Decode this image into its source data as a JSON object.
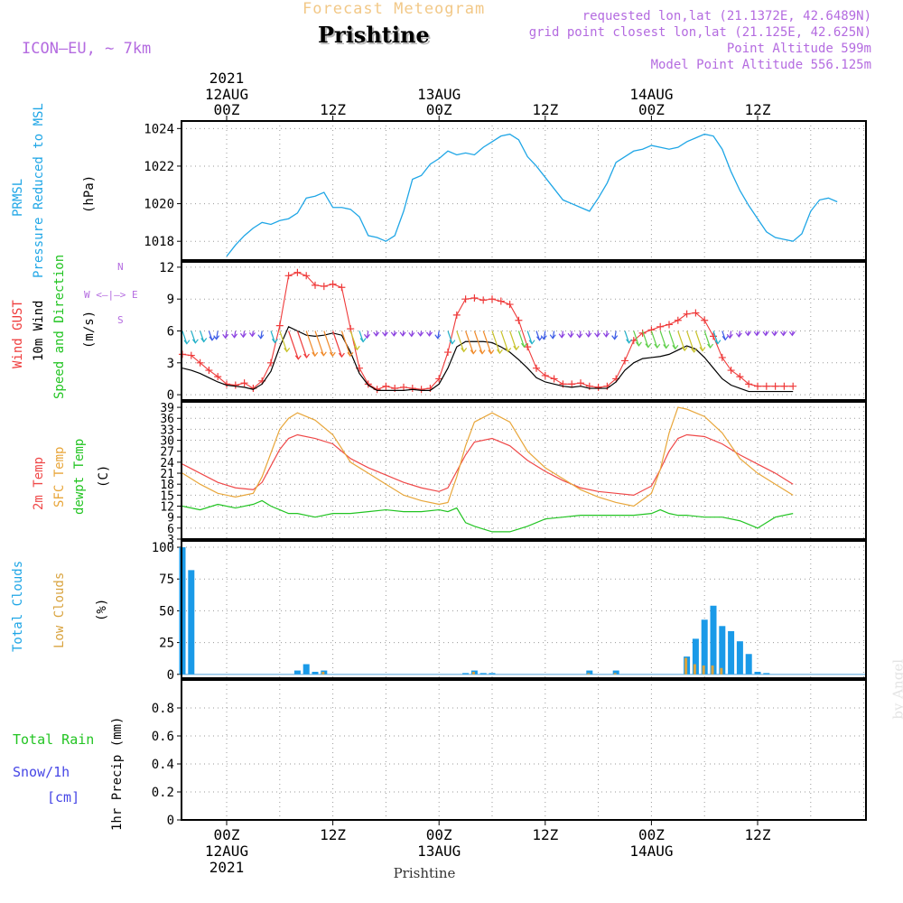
{
  "header": {
    "title": "Forecast Meteogram",
    "location": "Prishtine",
    "model": "ICON—EU,  ∼ 7km",
    "requested": "requested lon,lat (21.1372E, 42.6489N)",
    "grid_point": "grid point closest lon,lat (21.125E, 42.625N)",
    "point_altitude": "Point Altitude 599m",
    "model_altitude": "Model Point Altitude 556.125m"
  },
  "time_axis": {
    "top_year": "2021",
    "days": [
      "12AUG",
      "13AUG",
      "14AUG"
    ],
    "tick_00": "00Z",
    "tick_12": "12Z",
    "bottom_year": "2021",
    "footer": "Prishtine"
  },
  "panel_labels": {
    "pressure": [
      "PRMSL",
      "Pressure Reduced to MSL",
      "(hPa)"
    ],
    "wind": [
      "Wind GUST",
      "10m Wind",
      "Speed and Direction",
      "(m/s)"
    ],
    "compass": [
      "N",
      "W <—|—> E",
      "S"
    ],
    "temp": [
      "2m Temp",
      "SFC Temp",
      "dewpt Temp",
      "(C)"
    ],
    "clouds": [
      "Total Clouds",
      "Low Clouds",
      "(%)"
    ],
    "precip_axis": "1hr Precip (mm)",
    "precip_legend": [
      "Total  Rain",
      "Snow/1h",
      "[cm]"
    ]
  },
  "credit": "by Angel",
  "colors": {
    "pressure": "#1fa6e6",
    "gust": "#ef3b3b",
    "wind": "#000000",
    "temp2m": "#ef4848",
    "sfc": "#e8a63a",
    "dewpt": "#22c422",
    "total_clouds": "#1a9ae8",
    "low_clouds": "#d9a440",
    "rain": "#22c422",
    "snow": "#4646e6",
    "purple": "#b46be0"
  },
  "chart_data": [
    {
      "type": "line",
      "name": "pressure",
      "ylabel": "(hPa)",
      "ylim": [
        1017,
        1024.4
      ],
      "yticks": [
        1018,
        1020,
        1022,
        1024
      ],
      "x_hours": [
        0,
        1,
        2,
        3,
        4,
        5,
        6,
        7,
        8,
        9,
        10,
        11,
        12,
        13,
        14,
        15,
        16,
        17,
        18,
        19,
        20,
        21,
        22,
        23,
        24,
        25,
        26,
        27,
        28,
        29,
        30,
        31,
        32,
        33,
        34,
        35,
        36,
        37,
        38,
        39,
        40,
        41,
        42,
        43,
        44,
        45,
        46,
        47,
        48,
        49,
        50,
        51,
        52,
        53,
        54,
        55,
        56,
        57,
        58,
        59,
        60,
        61,
        62,
        63,
        64,
        65,
        66,
        67,
        68,
        69
      ],
      "series": [
        {
          "name": "PRMSL",
          "values": [
            1017.2,
            1017.8,
            1018.3,
            1018.7,
            1019.0,
            1018.9,
            1019.1,
            1019.2,
            1019.5,
            1020.3,
            1020.4,
            1020.6,
            1019.8,
            1019.8,
            1019.7,
            1019.3,
            1018.3,
            1018.2,
            1018.0,
            1018.3,
            1019.6,
            1021.3,
            1021.5,
            1022.1,
            1022.4,
            1022.8,
            1022.6,
            1022.7,
            1022.6,
            1023.0,
            1023.3,
            1023.6,
            1023.7,
            1023.4,
            1022.5,
            1022.0,
            1021.4,
            1020.8,
            1020.2,
            1020.0,
            1019.8,
            1019.6,
            1020.3,
            1021.1,
            1022.2,
            1022.5,
            1022.8,
            1022.9,
            1023.1,
            1023.0,
            1022.9,
            1023.0,
            1023.3,
            1023.5,
            1023.7,
            1023.6,
            1022.9,
            1021.7,
            1020.7,
            1019.9,
            1019.2,
            1018.5,
            1018.2,
            1018.1,
            1018.0,
            1018.4,
            1019.6,
            1020.2,
            1020.3,
            1020.1
          ]
        }
      ]
    },
    {
      "type": "line",
      "name": "wind",
      "ylabel": "(m/s)",
      "ylim": [
        -0.5,
        12.5
      ],
      "yticks": [
        0,
        3,
        6,
        9,
        12
      ],
      "x_hours": [
        0,
        1,
        2,
        3,
        4,
        5,
        6,
        7,
        8,
        9,
        10,
        11,
        12,
        13,
        14,
        15,
        16,
        17,
        18,
        19,
        20,
        21,
        22,
        23,
        24,
        25,
        26,
        27,
        28,
        29,
        30,
        31,
        32,
        33,
        34,
        35,
        36,
        37,
        38,
        39,
        40,
        41,
        42,
        43,
        44,
        45,
        46,
        47,
        48,
        49,
        50,
        51,
        52,
        53,
        54,
        55,
        56,
        57,
        58,
        59,
        60,
        61,
        62,
        63,
        64,
        65,
        66,
        67,
        68,
        69
      ],
      "series": [
        {
          "name": "Wind GUST",
          "values": [
            3.8,
            3.7,
            3.0,
            2.3,
            1.7,
            1.0,
            0.9,
            1.1,
            0.6,
            1.3,
            3.0,
            6.5,
            11.2,
            11.5,
            11.2,
            10.3,
            10.2,
            10.4,
            10.1,
            6.2,
            2.5,
            1.0,
            0.5,
            0.8,
            0.6,
            0.7,
            0.6,
            0.5,
            0.6,
            1.5,
            4.0,
            7.5,
            9.0,
            9.1,
            8.9,
            9.0,
            8.8,
            8.5,
            7.0,
            4.5,
            2.5,
            1.8,
            1.5,
            1.0,
            1.0,
            1.1,
            0.8,
            0.7,
            0.8,
            1.5,
            3.2,
            5.1,
            5.8,
            6.1,
            6.4,
            6.6,
            7.0,
            7.6,
            7.7,
            7.0,
            5.5,
            3.5,
            2.3,
            1.7,
            1.0,
            0.8,
            0.8,
            0.8,
            0.8,
            0.8
          ]
        },
        {
          "name": "10m Wind",
          "values": [
            2.5,
            2.3,
            2.0,
            1.6,
            1.2,
            0.9,
            0.8,
            0.7,
            0.5,
            1.0,
            2.2,
            4.5,
            6.4,
            6.0,
            5.6,
            5.5,
            5.6,
            5.8,
            5.6,
            4.0,
            2.0,
            0.9,
            0.4,
            0.4,
            0.4,
            0.4,
            0.5,
            0.4,
            0.4,
            1.0,
            2.5,
            4.5,
            5.0,
            5.0,
            5.0,
            4.9,
            4.5,
            4.0,
            3.3,
            2.5,
            1.6,
            1.2,
            1.0,
            0.8,
            0.7,
            0.8,
            0.6,
            0.6,
            0.6,
            1.2,
            2.3,
            3.0,
            3.4,
            3.5,
            3.6,
            3.8,
            4.2,
            4.6,
            4.3,
            3.5,
            2.5,
            1.5,
            0.9,
            0.6,
            0.3,
            0.3,
            0.3,
            0.3,
            0.3,
            0.3
          ]
        }
      ]
    },
    {
      "type": "line",
      "name": "temperature",
      "ylabel": "(C)",
      "ylim": [
        3,
        40.5
      ],
      "yticks": [
        3,
        6,
        9,
        12,
        15,
        18,
        21,
        24,
        27,
        30,
        33,
        36,
        39
      ],
      "x_hours": [
        0,
        2,
        4,
        6,
        8,
        9,
        10,
        11,
        12,
        13,
        15,
        17,
        19,
        21,
        23,
        25,
        27,
        29,
        30,
        31,
        32,
        33,
        35,
        37,
        39,
        41,
        43,
        45,
        47,
        49,
        51,
        53,
        54,
        55,
        56,
        57,
        59,
        61,
        63,
        65,
        67,
        69
      ],
      "series": [
        {
          "name": "2m Temp",
          "values": [
            23.5,
            21.0,
            18.5,
            17.0,
            16.5,
            18.5,
            23.0,
            27.5,
            30.5,
            31.5,
            30.5,
            29.0,
            25.0,
            22.5,
            20.5,
            18.5,
            17.0,
            16.0,
            17.0,
            21.5,
            26.0,
            29.5,
            30.5,
            28.5,
            24.5,
            21.5,
            19.0,
            17.0,
            16.0,
            15.5,
            15.0,
            17.5,
            22.0,
            27.0,
            30.5,
            31.5,
            31.0,
            29.0,
            26.0,
            23.5,
            21.0,
            18.0
          ]
        },
        {
          "name": "SFC Temp",
          "values": [
            21.0,
            18.0,
            15.5,
            14.5,
            15.5,
            20.0,
            26.5,
            33.0,
            36.0,
            37.5,
            35.5,
            31.5,
            24.0,
            21.0,
            18.0,
            15.0,
            13.5,
            12.5,
            13.0,
            20.0,
            28.5,
            35.0,
            37.5,
            35.0,
            27.0,
            22.5,
            19.5,
            16.5,
            14.5,
            13.0,
            12.0,
            15.5,
            22.0,
            32.0,
            39.0,
            38.5,
            36.5,
            32.0,
            25.0,
            21.0,
            18.0,
            15.0
          ]
        },
        {
          "name": "dewpt Temp",
          "values": [
            12.0,
            11.0,
            12.5,
            11.5,
            12.5,
            13.5,
            12.0,
            11.0,
            10.0,
            10.0,
            9.0,
            10.0,
            10.0,
            10.5,
            11.0,
            10.5,
            10.5,
            11.0,
            10.5,
            11.5,
            7.5,
            6.5,
            5.0,
            5.0,
            6.5,
            8.5,
            9.0,
            9.5,
            9.5,
            9.5,
            9.5,
            10.0,
            11.0,
            10.0,
            9.5,
            9.5,
            9.0,
            9.0,
            8.0,
            6.0,
            9.0,
            10.0
          ]
        }
      ]
    },
    {
      "type": "bar",
      "name": "clouds",
      "ylabel": "(%)",
      "ylim": [
        -3,
        105
      ],
      "yticks": [
        0,
        25,
        50,
        75,
        100
      ],
      "x_hours": [
        0,
        1,
        2,
        3,
        4,
        5,
        6,
        7,
        8,
        9,
        10,
        11,
        12,
        13,
        14,
        15,
        16,
        17,
        18,
        19,
        20,
        21,
        22,
        23,
        24,
        25,
        26,
        27,
        28,
        29,
        30,
        31,
        32,
        33,
        34,
        35,
        36,
        37,
        38,
        39,
        40,
        41,
        42,
        43,
        44,
        45,
        46,
        47,
        48,
        49,
        50,
        51,
        52,
        53,
        54,
        55,
        56,
        57,
        58,
        59,
        60,
        61,
        62,
        63,
        64,
        65,
        66,
        67,
        68,
        69
      ],
      "series": [
        {
          "name": "Total Clouds",
          "values": [
            100,
            82,
            0,
            0,
            0,
            0,
            0,
            0,
            0,
            0,
            0,
            0,
            0,
            3,
            8,
            2,
            3,
            0,
            0,
            0,
            0,
            0,
            0,
            0,
            0,
            0,
            0,
            0,
            0,
            0,
            0,
            0,
            1,
            3,
            1,
            1,
            0,
            0,
            0,
            0,
            0,
            0,
            0,
            0,
            0,
            0,
            3,
            0,
            0,
            3,
            0,
            0,
            0,
            0,
            0,
            0,
            0,
            14,
            28,
            43,
            54,
            38,
            34,
            26,
            16,
            2,
            1,
            0,
            0,
            0
          ]
        },
        {
          "name": "Low Clouds",
          "values": [
            0,
            0,
            0,
            0,
            0,
            0,
            0,
            0,
            0,
            0,
            0,
            0,
            0,
            0,
            0,
            0,
            2,
            0,
            0,
            0,
            0,
            0,
            0,
            0,
            0,
            0,
            0,
            0,
            0,
            0,
            0,
            0,
            0,
            2,
            0,
            0,
            0,
            0,
            0,
            0,
            0,
            0,
            0,
            0,
            0,
            0,
            1,
            0,
            0,
            1,
            0,
            0,
            0,
            0,
            0,
            0,
            0,
            13,
            8,
            7,
            7,
            5,
            0,
            0,
            0,
            0,
            0,
            0,
            0,
            0
          ]
        }
      ]
    },
    {
      "type": "bar",
      "name": "precipitation",
      "ylabel": "1hr Precip (mm)",
      "ylim": [
        0,
        1.0
      ],
      "yticks": [
        0,
        0.2,
        0.4,
        0.6,
        0.8
      ],
      "series": [
        {
          "name": "Total Rain",
          "values": []
        },
        {
          "name": "Snow/1h",
          "values": []
        }
      ]
    }
  ]
}
